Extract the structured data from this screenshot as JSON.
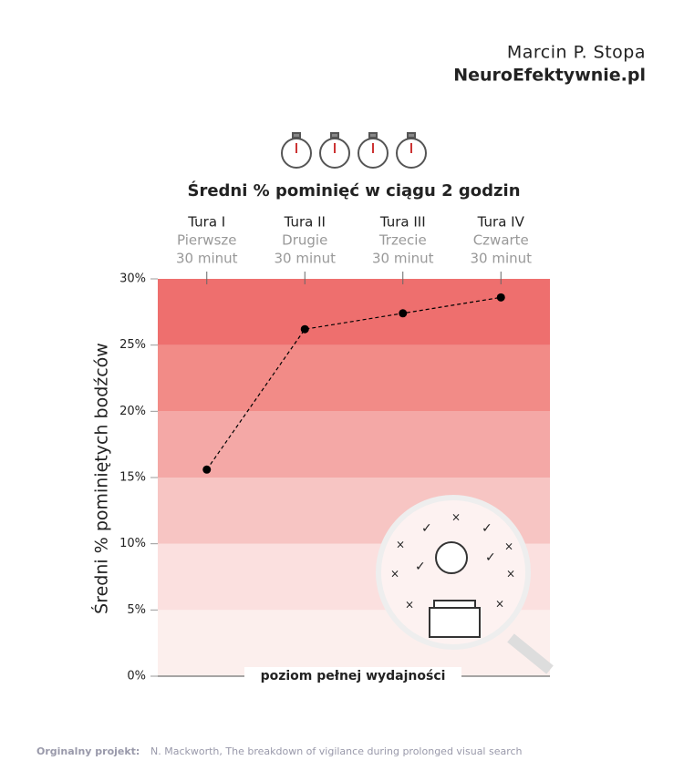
{
  "chart_data": {
    "type": "line",
    "author": "Marcin P. Stopa",
    "site": "NeuroEfektywnie.pl",
    "title": "Średni % pominięć w ciągu 2 godzin",
    "y_label": "Średni % pominiętych bodźców",
    "annotation": "poziom pełnej wydajności",
    "source_label": "Orginalny projekt:",
    "source": "N. Mackworth, The breakdown of vigilance during prolonged visual search",
    "categories": [
      [
        "Tura I",
        "Pierwsze",
        "30 minut"
      ],
      [
        "Tura II",
        "Drugie",
        "30 minut"
      ],
      [
        "Tura III",
        "Trzecie",
        "30 minut"
      ],
      [
        "Tura IV",
        "Czwarte",
        "30 minut"
      ]
    ],
    "values": [
      15.6,
      26.2,
      27.4,
      28.6
    ],
    "color": "#000000",
    "ylim": [
      0,
      30
    ],
    "yticks": [
      {
        "value": 0,
        "label": "0%"
      },
      {
        "value": 5,
        "label": "5%"
      },
      {
        "value": 10,
        "label": "10%"
      },
      {
        "value": 15,
        "label": "15%"
      },
      {
        "value": 20,
        "label": "20%"
      },
      {
        "value": 25,
        "label": "25%"
      },
      {
        "value": 30,
        "label": "30%"
      }
    ],
    "band_colors": [
      "#fcefed",
      "#fbe0df",
      "#f7c5c3",
      "#f4a8a6",
      "#f28b87",
      "#ee6f6e"
    ]
  }
}
